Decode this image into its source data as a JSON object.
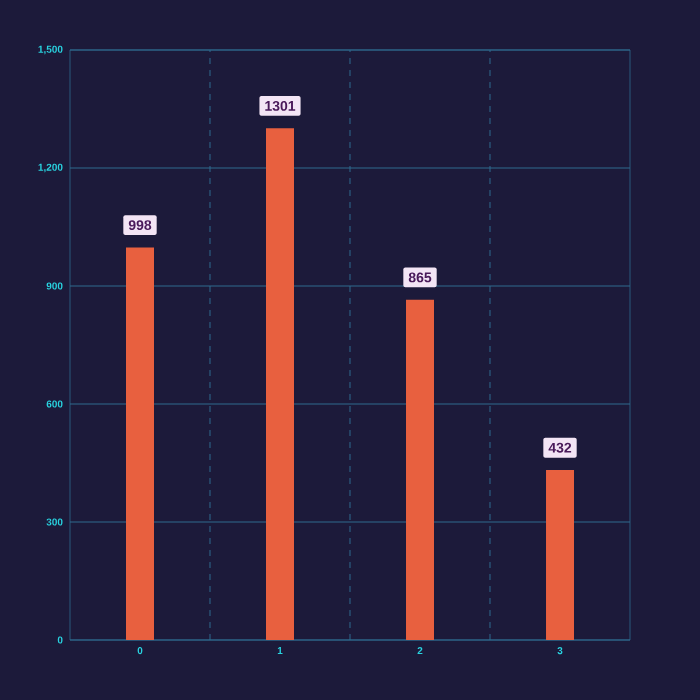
{
  "chart_data": {
    "type": "bar",
    "categories": [
      "0",
      "1",
      "2",
      "3"
    ],
    "values": [
      998,
      1301,
      865,
      432
    ],
    "color": "#e8603f",
    "ylim": [
      0,
      1500
    ],
    "yticks": [
      0,
      300,
      600,
      900,
      {
        "value": 1200,
        "label": "1,200"
      },
      {
        "value": 1500,
        "label": "1,500"
      }
    ],
    "grid": true,
    "data_labels": true
  }
}
